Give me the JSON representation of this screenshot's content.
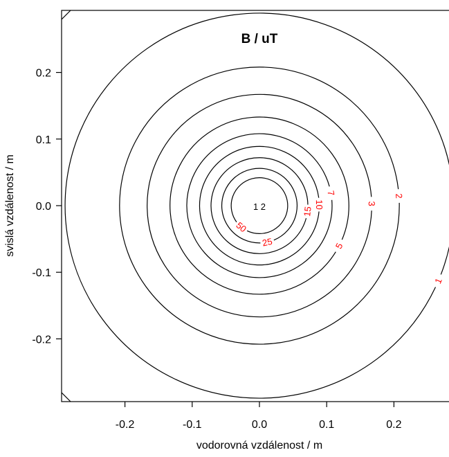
{
  "chart_data": {
    "type": "contour",
    "title": "B / uT",
    "xlabel": "vodorovná vzdálenost / m",
    "ylabel": "svislá vzdálenost / m",
    "xlim": [
      -0.295,
      0.295
    ],
    "ylim": [
      -0.295,
      0.295
    ],
    "xticks": [
      "-0.2",
      "-0.1",
      "0.0",
      "0.1",
      "0.2"
    ],
    "yticks": [
      "-0.2",
      "-0.1",
      "0.0",
      "0.1",
      "0.2"
    ],
    "tick_values": [
      -0.2,
      -0.1,
      0.0,
      0.1,
      0.2
    ],
    "center": [
      0.0,
      0.0
    ],
    "levels": [
      {
        "value": 1,
        "label": "1",
        "radius": 0.289,
        "label_angle": 67
      },
      {
        "value": 2,
        "label": "2",
        "radius": 0.208,
        "label_angle": 94
      },
      {
        "value": 3,
        "label": "3",
        "radius": 0.167,
        "label_angle": 91
      },
      {
        "value": 5,
        "label": "5",
        "radius": 0.133,
        "label_angle": 63
      },
      {
        "value": 7,
        "label": "7",
        "radius": 0.108,
        "label_angle": 100
      },
      {
        "value": 10,
        "label": "10",
        "radius": 0.089,
        "label_angle": 91
      },
      {
        "value": 15,
        "label": "15",
        "radius": 0.072,
        "label_angle": 83
      },
      {
        "value": 25,
        "label": "25",
        "radius": 0.056,
        "label_angle": 12
      },
      {
        "value": 50,
        "label": "50",
        "radius": 0.042,
        "label_angle": -40
      }
    ],
    "inner_label": "1 2",
    "colors": {
      "lines": "#000000",
      "level_labels": "#ff0000",
      "inner_label": "#000000",
      "frame": "#000000"
    }
  }
}
